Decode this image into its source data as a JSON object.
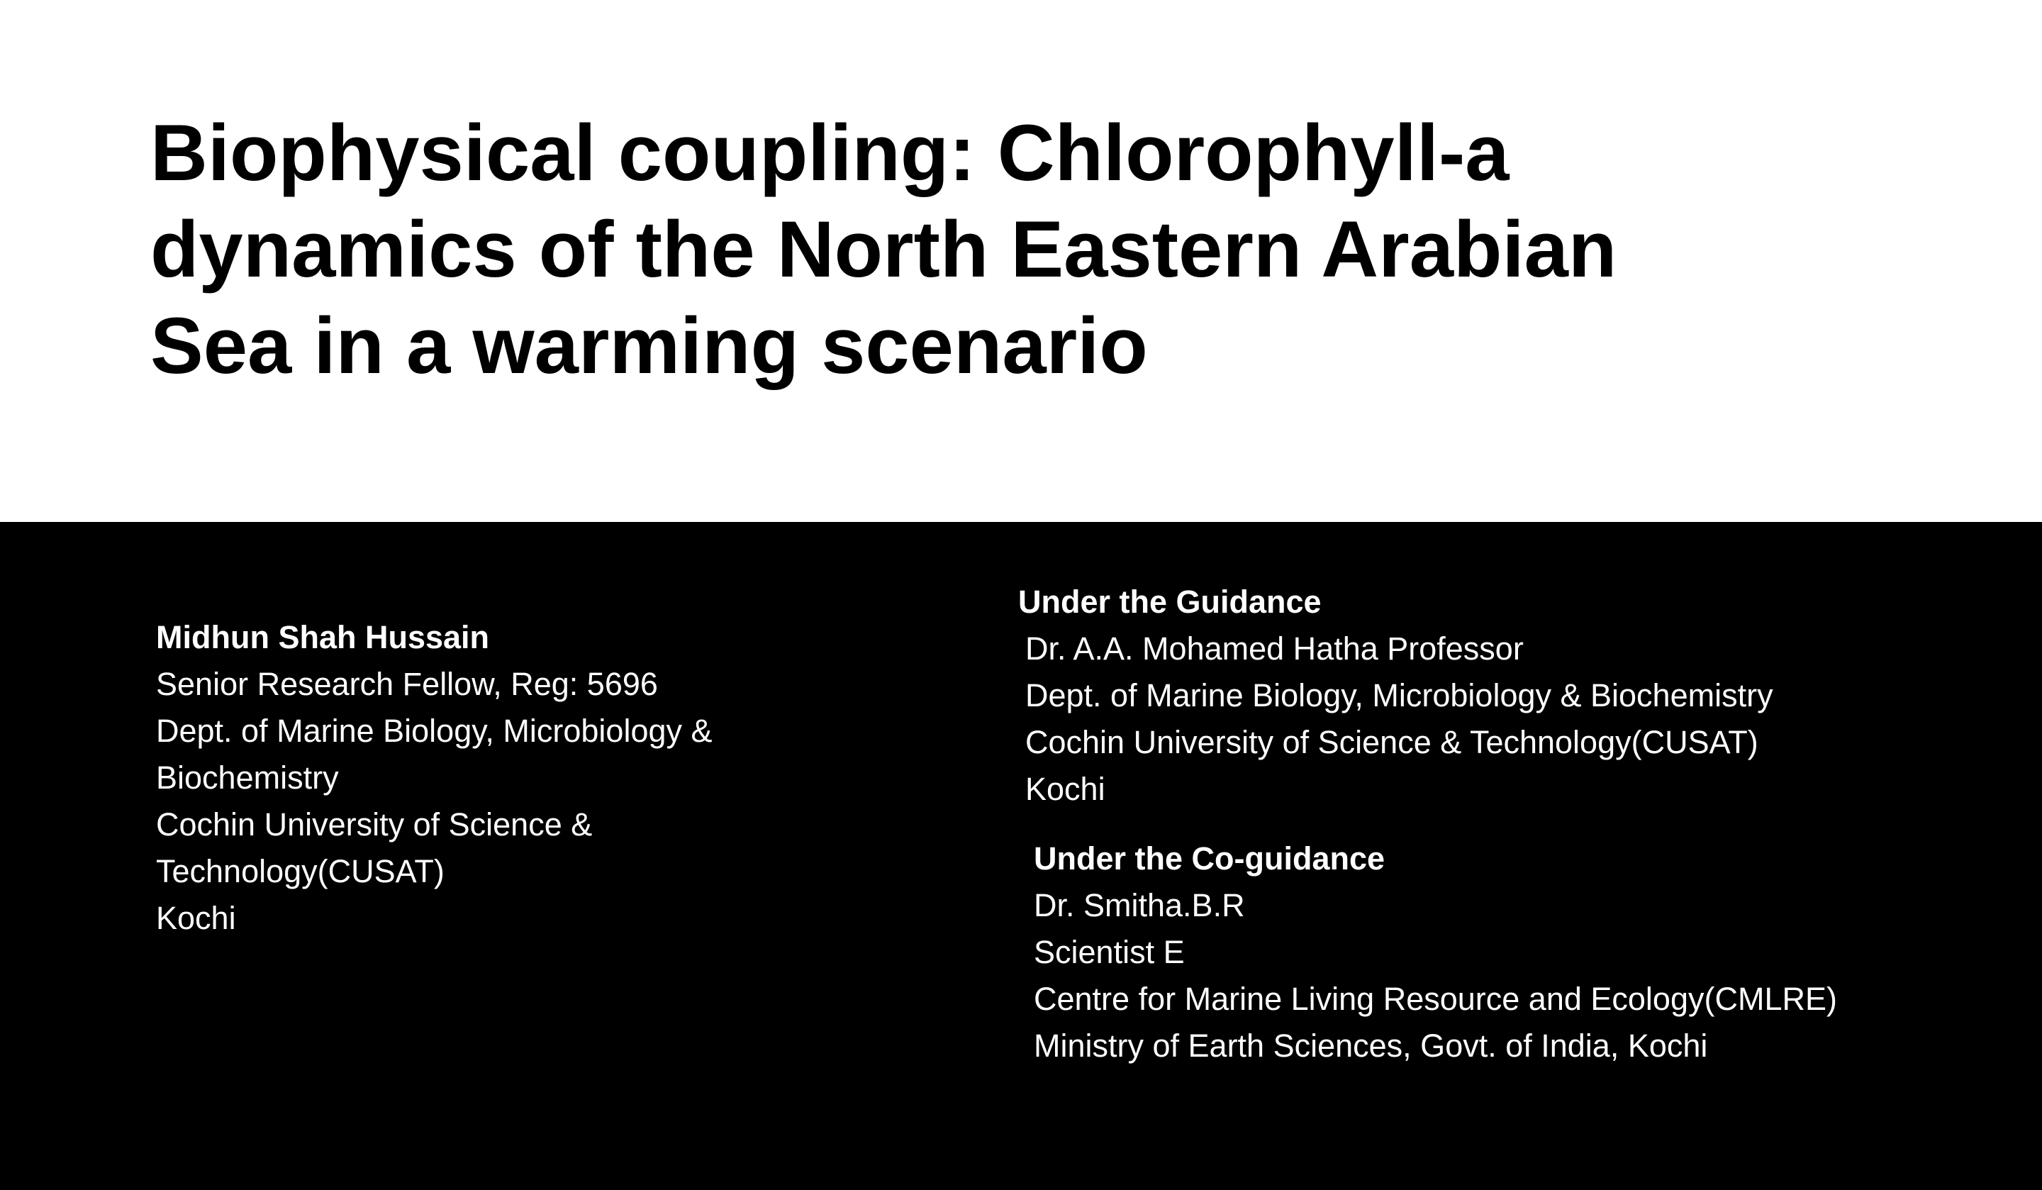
{
  "title": {
    "lines": [
      "Biophysical coupling: Chlorophyll-a",
      "dynamics of the North Eastern Arabian",
      "Sea in a warming scenario"
    ]
  },
  "author": {
    "name": "Midhun Shah Hussain",
    "lines": [
      "Senior Research Fellow, Reg: 5696",
      "Dept. of Marine Biology, Microbiology &",
      "Biochemistry",
      "Cochin University of Science &",
      "Technology(CUSAT)",
      "Kochi"
    ]
  },
  "guidance": {
    "heading": "Under the Guidance",
    "lines": [
      "Dr. A.A. Mohamed Hatha Professor",
      "Dept. of Marine Biology, Microbiology & Biochemistry",
      "Cochin University of Science & Technology(CUSAT)",
      "Kochi"
    ]
  },
  "coguidance": {
    "heading": "Under the Co-guidance",
    "lines": [
      "Dr. Smitha.B.R",
      "Scientist E",
      "Centre for Marine Living Resource and Ecology(CMLRE)",
      "Ministry of Earth Sciences, Govt. of India, Kochi"
    ]
  }
}
